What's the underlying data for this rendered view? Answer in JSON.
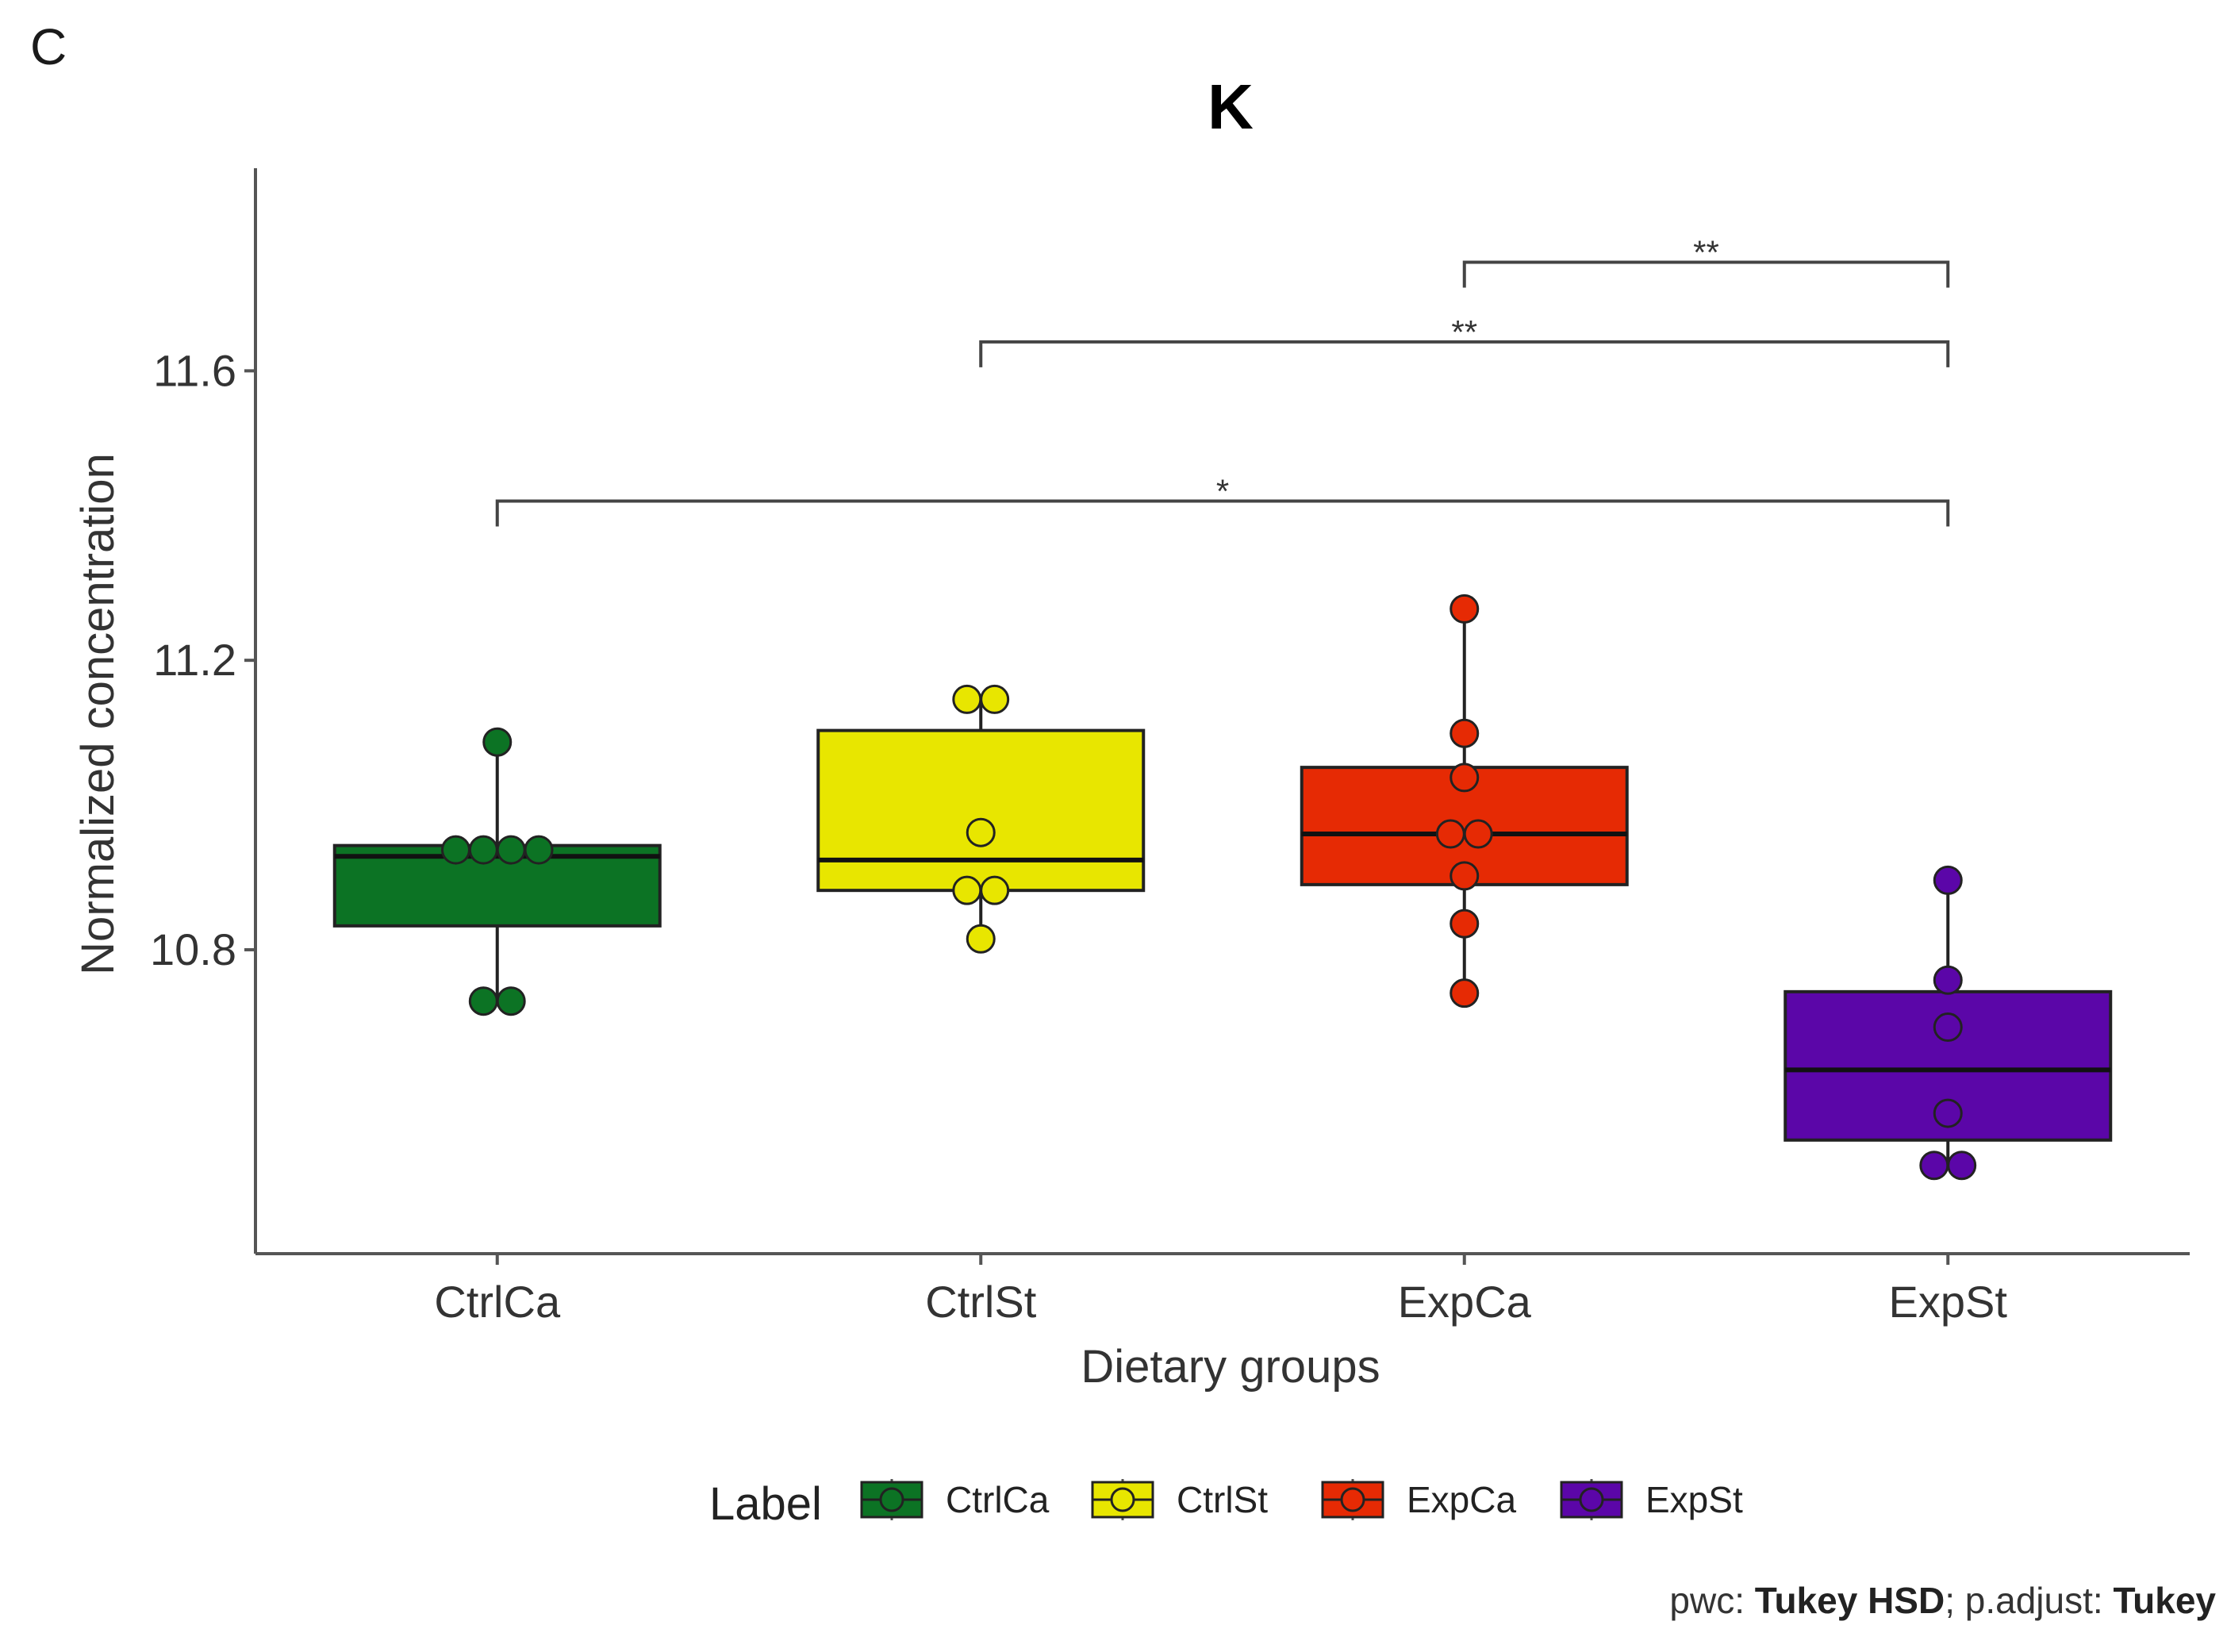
{
  "panel_letter": "C",
  "caption": {
    "pwc_label": "pwc:",
    "pwc_value": "Tukey HSD",
    "sep": ";",
    "adjust_label": "p.adjust:",
    "adjust_value": "Tukey"
  },
  "chart_data": {
    "type": "box",
    "title": "K",
    "xlabel": "Dietary groups",
    "ylabel": "Normalized concentration",
    "ylim": [
      10.38,
      11.88
    ],
    "yticks": [
      10.8,
      11.2,
      11.6
    ],
    "ytick_labels": [
      "10.8",
      "11.2",
      "11.6"
    ],
    "categories": [
      "CtrlCa",
      "CtrlSt",
      "ExpCa",
      "ExpSt"
    ],
    "grid": false,
    "legend": {
      "title": "Label",
      "position": "bottom",
      "entries": [
        "CtrlCa",
        "CtrlSt",
        "ExpCa",
        "ExpSt"
      ]
    },
    "colors": {
      "CtrlCa": "#0c7324",
      "CtrlSt": "#e8e600",
      "ExpCa": "#e62a04",
      "ExpSt": "#5b06a8"
    },
    "boxes": [
      {
        "name": "CtrlCa",
        "q1": 10.833,
        "median": 10.929,
        "q3": 10.944,
        "whisker_low": 10.731,
        "whisker_high": 11.087,
        "points": [
          11.087,
          10.938,
          10.938,
          10.938,
          10.938,
          10.729,
          10.729
        ]
      },
      {
        "name": "CtrlSt",
        "q1": 10.882,
        "median": 10.924,
        "q3": 11.103,
        "whisker_low": 10.815,
        "whisker_high": 11.146,
        "points": [
          11.146,
          11.146,
          10.962,
          10.882,
          10.882,
          10.815
        ]
      },
      {
        "name": "ExpCa",
        "q1": 10.89,
        "median": 10.96,
        "q3": 11.052,
        "whisker_low": 10.74,
        "whisker_high": 11.271,
        "points": [
          11.271,
          11.099,
          11.038,
          10.96,
          10.96,
          10.902,
          10.836,
          10.74
        ]
      },
      {
        "name": "ExpSt",
        "q1": 10.537,
        "median": 10.634,
        "q3": 10.742,
        "whisker_low": 10.502,
        "whisker_high": 10.896,
        "points": [
          10.896,
          10.758,
          10.693,
          10.574,
          10.502,
          10.502
        ]
      }
    ],
    "comparisons": [
      {
        "group1": "ExpCa",
        "group2": "ExpSt",
        "label": "**",
        "y": 11.75
      },
      {
        "group1": "CtrlSt",
        "group2": "ExpSt",
        "label": "**",
        "y": 11.64
      },
      {
        "group1": "CtrlCa",
        "group2": "ExpSt",
        "label": "*",
        "y": 11.42
      }
    ]
  }
}
